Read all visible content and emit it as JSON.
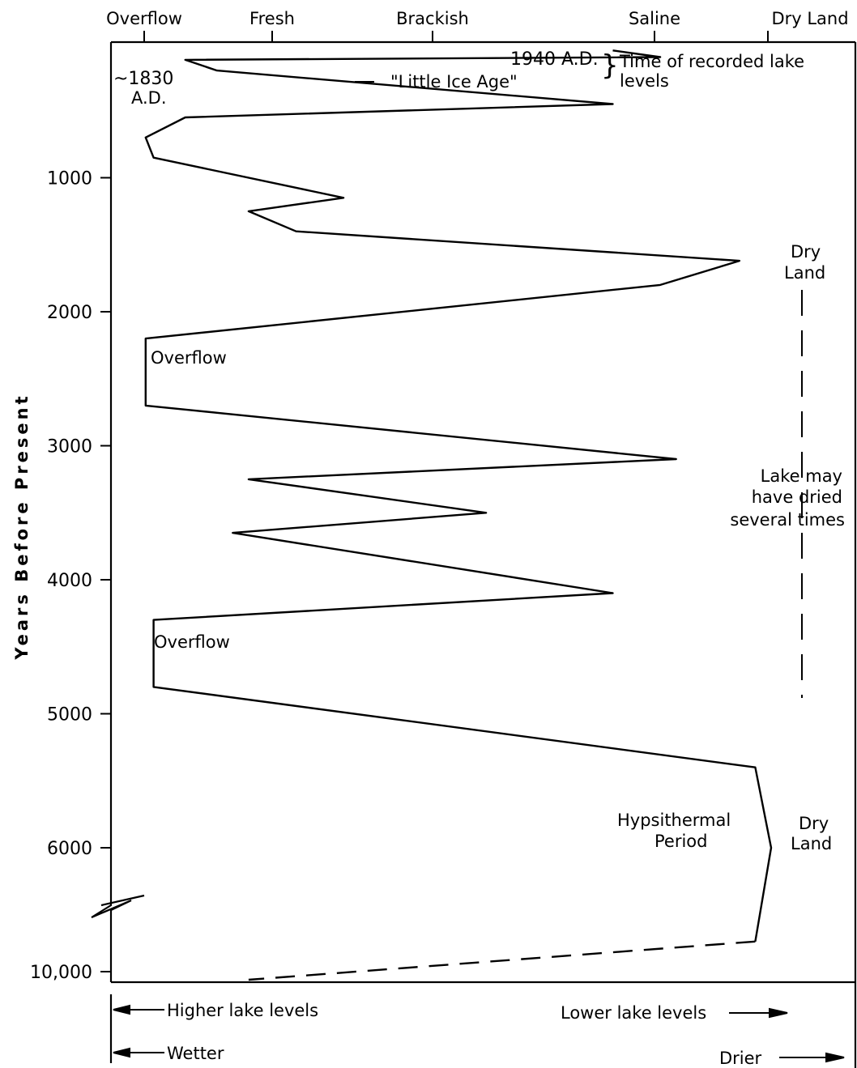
{
  "chart_data": {
    "type": "line",
    "title": "",
    "ylabel": "Years Before Present",
    "y_ticks": [
      "1000",
      "2000",
      "3000",
      "4000",
      "5000",
      "6000",
      "10,000"
    ],
    "x_categories": [
      "Overflow",
      "Fresh",
      "Brackish",
      "Saline",
      "Dry Land"
    ],
    "x_scale_note": "lake level 0 = Overflow, 4 = Dry Land",
    "y_axis_break": "between 6000 and 10,000",
    "series": [
      {
        "values": [
          {
            "year": 50,
            "level": 3.0
          },
          {
            "year": 100,
            "level": 3.3
          },
          {
            "year": 120,
            "level": 0.3
          },
          {
            "year": 200,
            "level": 0.5
          },
          {
            "year": 450,
            "level": 3.0
          },
          {
            "year": 550,
            "level": 0.3
          },
          {
            "year": 700,
            "level": 0.05
          },
          {
            "year": 850,
            "level": 0.1
          },
          {
            "year": 1150,
            "level": 1.3
          },
          {
            "year": 1250,
            "level": 0.7
          },
          {
            "year": 1400,
            "level": 1.0
          },
          {
            "year": 1620,
            "level": 3.8
          },
          {
            "year": 1800,
            "level": 3.3
          },
          {
            "year": 2200,
            "level": 0.05
          },
          {
            "year": 2700,
            "level": 0.05
          },
          {
            "year": 3100,
            "level": 3.4
          },
          {
            "year": 3250,
            "level": 0.7
          },
          {
            "year": 3500,
            "level": 2.2
          },
          {
            "year": 3650,
            "level": 0.6
          },
          {
            "year": 4100,
            "level": 3.0
          },
          {
            "year": 4300,
            "level": 0.1
          },
          {
            "year": 4800,
            "level": 0.1
          },
          {
            "year": 5400,
            "level": 3.9
          },
          {
            "year": 6000,
            "level": 4.0
          },
          {
            "year": 6700,
            "level": 3.9
          }
        ],
        "dashed_tail": [
          {
            "year": 6700,
            "level": 3.9
          },
          {
            "year": 10000,
            "level": 0.7
          }
        ]
      }
    ],
    "annotations": {
      "a1940": "1940 A.D.",
      "brace": "}",
      "recorded1": "Time of recorded lake",
      "recorded2": "levels",
      "a1830_1": "~1830",
      "a1830_2": "A.D.",
      "little_ice_age": "\"Little Ice Age\"",
      "dryland1_1": "Dry",
      "dryland1_2": "Land",
      "overflow1": "Overflow",
      "overflow2": "Overflow",
      "dried1": "Lake may",
      "dried2": "have dried",
      "dried3": "several times",
      "hyps1": "Hypsithermal",
      "hyps2": "Period",
      "dryland2_1": "Dry",
      "dryland2_2": "Land"
    },
    "legend_arrows": {
      "higher": "Higher lake levels",
      "lower": "Lower lake levels",
      "wetter": "Wetter",
      "drier": "Drier"
    },
    "grid": false
  }
}
